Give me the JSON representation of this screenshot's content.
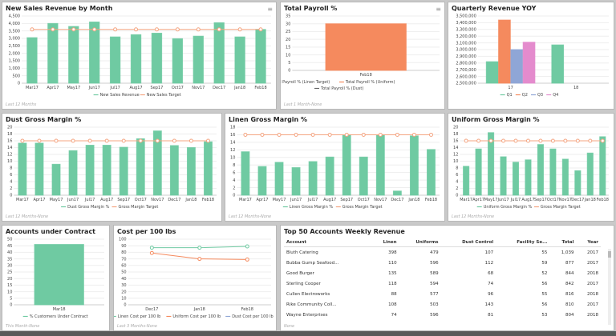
{
  "colors": {
    "green": "#6fcaa2",
    "orange": "#f58a5e",
    "target": "#f4a582",
    "blue": "#8fa6d6",
    "pink": "#e48bcd"
  },
  "charts": [
    {
      "id": "sales",
      "title": "New Sales Revenue by Month",
      "footer": "Last 12 Months",
      "menu": "≡",
      "type": "bar",
      "categories": [
        "Mar17",
        "Apr17",
        "May17",
        "Jun17",
        "Jul17",
        "Aug17",
        "Sep17",
        "Oct17",
        "Nov17",
        "Dec17",
        "Jan18",
        "Feb18"
      ],
      "ylim": [
        0,
        4500
      ],
      "ystep": 500,
      "yformat": "comma",
      "series": [
        {
          "name": "New Sales Revenue",
          "kind": "bar",
          "color": "#6fcaa2",
          "values": [
            3050,
            4000,
            3800,
            4100,
            3100,
            3250,
            3350,
            2980,
            3150,
            4050,
            3100,
            3600
          ]
        },
        {
          "name": "New Sales Target",
          "kind": "line",
          "color": "#f4a582",
          "values": [
            3600,
            3600,
            3600,
            3600,
            3600,
            3600,
            3600,
            3600,
            3600,
            3600,
            3600,
            3600
          ]
        }
      ]
    },
    {
      "id": "payroll",
      "title": "Total Payroll %",
      "footer": "Last 1 Month-None",
      "menu": "≡",
      "type": "bar",
      "categories": [
        "Feb18"
      ],
      "ylim": [
        0,
        35
      ],
      "ystep": 5,
      "series": [
        {
          "name": "Total Payroll % (Linen Target)",
          "kind": "legend",
          "color": "#666"
        },
        {
          "name": "Total Payroll % (Uniform)",
          "kind": "bar",
          "color": "#f58a5e",
          "values": [
            30
          ]
        },
        {
          "name": "Total Payroll % (Dust)",
          "kind": "legend",
          "color": "#666"
        }
      ]
    },
    {
      "id": "quarterly",
      "title": "Quarterly Revenue YOY",
      "type": "bar",
      "categories": [
        "17",
        "18"
      ],
      "ylim": [
        2500000,
        3500000
      ],
      "ystep": 100000,
      "yformat": "comma",
      "series": [
        {
          "name": "Q1",
          "kind": "bar",
          "color": "#6fcaa2",
          "values": [
            2820000,
            3070000
          ]
        },
        {
          "name": "Q2",
          "kind": "bar",
          "color": "#f58a5e",
          "values": [
            3440000,
            null
          ]
        },
        {
          "name": "Q3",
          "kind": "bar",
          "color": "#8fa6d6",
          "values": [
            3000000,
            null
          ]
        },
        {
          "name": "Q4",
          "kind": "bar",
          "color": "#e48bcd",
          "values": [
            3110000,
            null
          ]
        }
      ]
    },
    {
      "id": "dust",
      "title": "Dust Gross Margin %",
      "footer": "Last 12 Months-None",
      "type": "bar",
      "categories": [
        "Mar17",
        "Apr17",
        "May17",
        "Jun17",
        "Jul17",
        "Aug17",
        "Sep17",
        "Oct17",
        "Nov17",
        "Dec17",
        "Jan18",
        "Feb18"
      ],
      "ylim": [
        0,
        20
      ],
      "ystep": 2,
      "series": [
        {
          "name": "Dust Gross Margin %",
          "kind": "bar",
          "color": "#6fcaa2",
          "values": [
            15.3,
            15.3,
            9.1,
            13.1,
            14.7,
            14.7,
            14.1,
            16.6,
            18.9,
            14.6,
            14.0,
            15.7
          ]
        },
        {
          "name": "Gross Margin Target",
          "kind": "line",
          "color": "#f4a582",
          "values": [
            16,
            16,
            16,
            16,
            16,
            16,
            16,
            16,
            16,
            16,
            16,
            16
          ]
        }
      ]
    },
    {
      "id": "linen",
      "title": "Linen Gross Margin %",
      "footer": "Last 12 Months-None",
      "type": "bar",
      "categories": [
        "Mar17",
        "Apr17",
        "May17",
        "Jun17",
        "Jul17",
        "Aug17",
        "Sep17",
        "Oct17",
        "Nov17",
        "Dec17",
        "Jan18",
        "Feb18"
      ],
      "ylim": [
        0,
        18
      ],
      "ystep": 2,
      "series": [
        {
          "name": "Linen Gross Margin %",
          "kind": "bar",
          "color": "#6fcaa2",
          "values": [
            11.5,
            7.6,
            8.7,
            7.3,
            8.9,
            10.1,
            16,
            10.1,
            16,
            1.1,
            15.7,
            12.1
          ]
        },
        {
          "name": "Gross Margin Target",
          "kind": "line",
          "color": "#f4a582",
          "values": [
            16,
            16,
            16,
            16,
            16,
            16,
            16,
            16,
            16,
            16,
            16,
            16
          ]
        }
      ]
    },
    {
      "id": "uniform",
      "title": "Uniform Gross Margin %",
      "footer": "Last 12 Months-None",
      "type": "bar",
      "categories": [
        "Mar17",
        "Apr17",
        "May17",
        "Jun17",
        "Jul17",
        "Aug17",
        "Sep17",
        "Oct17",
        "Nov17",
        "Dec17",
        "Jan18",
        "Feb18"
      ],
      "ylim": [
        0,
        20
      ],
      "ystep": 2,
      "series": [
        {
          "name": "Uniform Gross Margin %",
          "kind": "bar",
          "color": "#6fcaa2",
          "values": [
            8.5,
            13.6,
            18.4,
            11.3,
            9.7,
            10.4,
            14.9,
            13.6,
            10.6,
            7.2,
            12.4,
            17.2
          ]
        },
        {
          "name": "Gross Margin Target",
          "kind": "line",
          "color": "#f4a582",
          "values": [
            16,
            16,
            16,
            16,
            16,
            16,
            16,
            16,
            16,
            16,
            16,
            16
          ]
        }
      ]
    },
    {
      "id": "accounts",
      "title": "Accounts under Contract",
      "footer": "This Month-None",
      "type": "bar",
      "categories": [
        "Mar18"
      ],
      "ylim": [
        0,
        50
      ],
      "ystep": 5,
      "series": [
        {
          "name": "% Customers Under Contract",
          "kind": "bar",
          "color": "#6fcaa2",
          "values": [
            46
          ]
        }
      ]
    },
    {
      "id": "cost",
      "title": "Cost per 100 lbs",
      "footer": "Last 3 Months-None",
      "type": "line",
      "categories": [
        "Dec17",
        "Jan18",
        "Feb18"
      ],
      "ylim": [
        0,
        100
      ],
      "ystep": 10,
      "series": [
        {
          "name": "Linen Cost per 100 lb",
          "kind": "line",
          "color": "#6fcaa2",
          "values": [
            87,
            87,
            89
          ]
        },
        {
          "name": "Uniform Cost per 100 lb",
          "kind": "line",
          "color": "#f58a5e",
          "values": [
            79,
            70,
            69
          ]
        },
        {
          "name": "Dust Cost per 100 lb",
          "kind": "legend",
          "color": "#8fa6d6"
        }
      ]
    }
  ],
  "table": {
    "title": "Top 50 Accounts Weekly Revenue",
    "footer": "None",
    "columns": [
      "Account",
      "Linen",
      "Uniforms",
      "Dust Control",
      "Facility Se...",
      "Total",
      "Year"
    ],
    "rows": [
      [
        "Bluth Catering",
        "398",
        "479",
        "107",
        "55",
        "1,039",
        "2017"
      ],
      [
        "Bubba Gump Seafood...",
        "110",
        "596",
        "112",
        "59",
        "877",
        "2017"
      ],
      [
        "Good Burger",
        "135",
        "589",
        "68",
        "52",
        "844",
        "2018"
      ],
      [
        "Sterling Cooper",
        "118",
        "594",
        "74",
        "56",
        "842",
        "2017"
      ],
      [
        "Cullen Electroworks",
        "88",
        "577",
        "96",
        "55",
        "816",
        "2018"
      ],
      [
        "Rike Community Coll...",
        "108",
        "503",
        "143",
        "56",
        "810",
        "2017"
      ],
      [
        "Wayne Enterprises",
        "74",
        "596",
        "81",
        "53",
        "804",
        "2018"
      ]
    ]
  }
}
